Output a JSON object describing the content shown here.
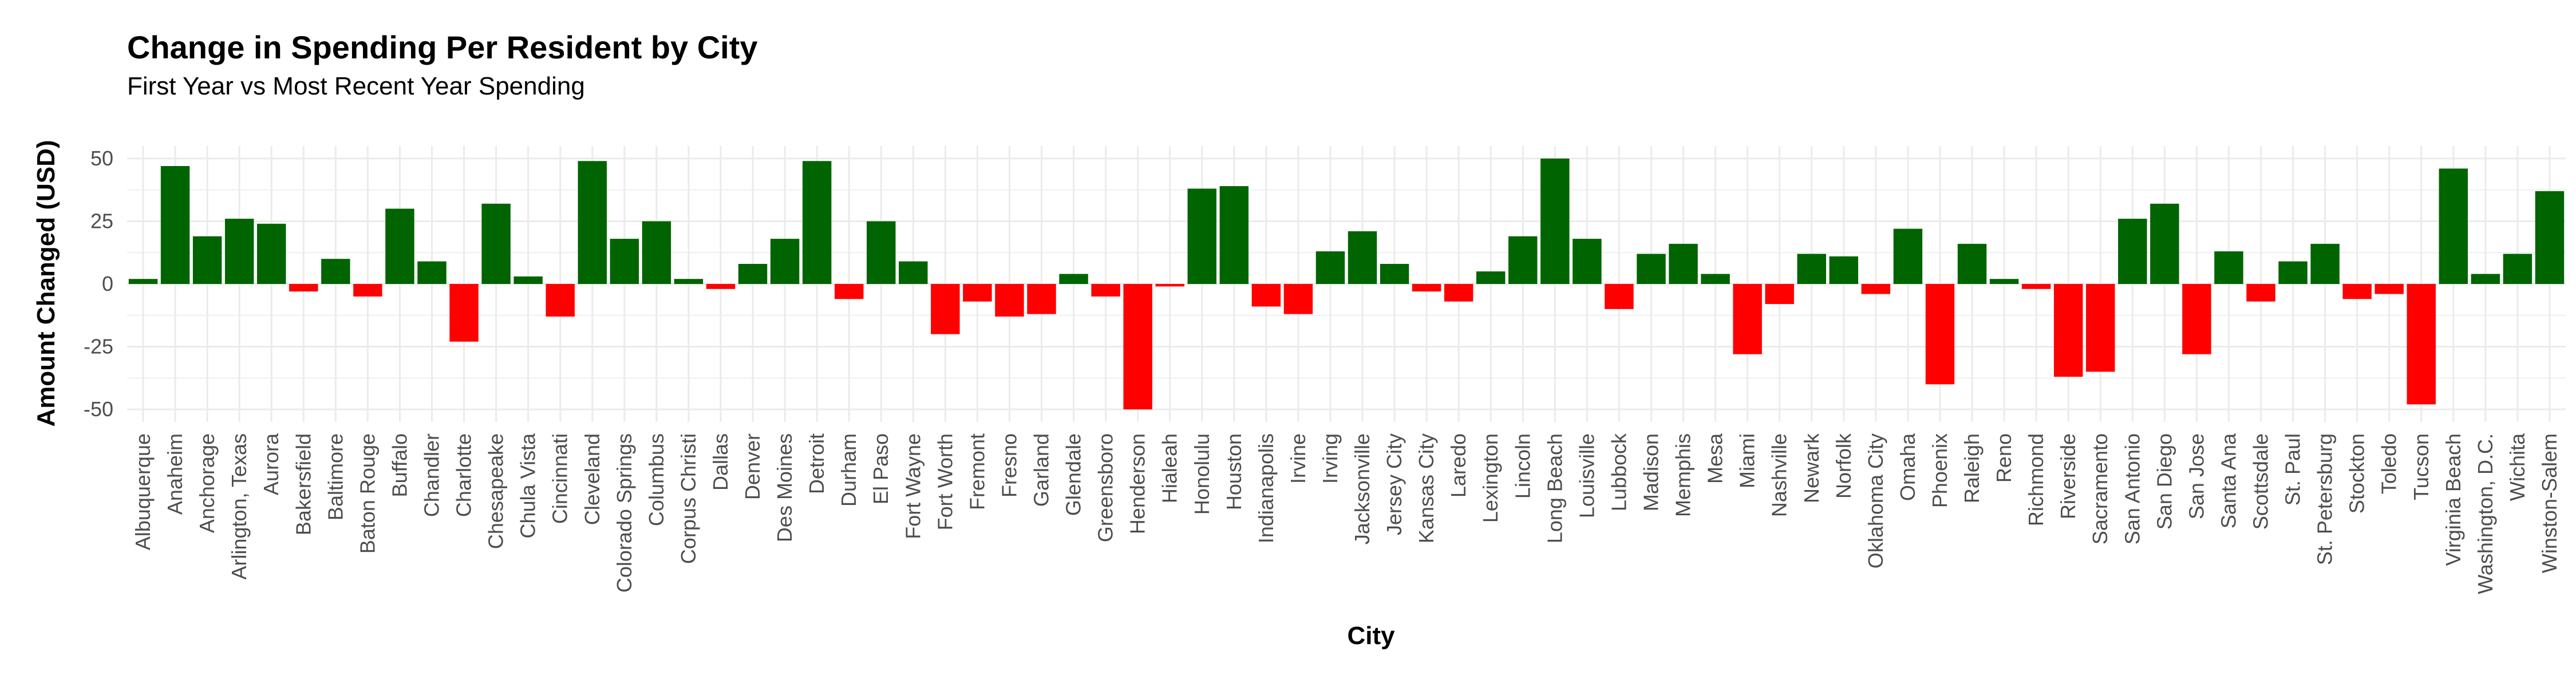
{
  "chart_data": {
    "type": "bar",
    "title": "Change in Spending Per Resident by City",
    "subtitle": "First Year vs Most Recent Year Spending",
    "xlabel": "City",
    "ylabel": "Amount Changed (USD)",
    "ylim": [
      -55,
      55
    ],
    "yticks": [
      -50,
      -25,
      0,
      25,
      50
    ],
    "grid": true,
    "colors": {
      "positive": "#006400",
      "negative": "#ff0000",
      "grid": "#ebebeb"
    },
    "categories": [
      "Albuquerque",
      "Anaheim",
      "Anchorage",
      "Arlington, Texas",
      "Aurora",
      "Bakersfield",
      "Baltimore",
      "Baton Rouge",
      "Buffalo",
      "Chandler",
      "Charlotte",
      "Chesapeake",
      "Chula Vista",
      "Cincinnati",
      "Cleveland",
      "Colorado Springs",
      "Columbus",
      "Corpus Christi",
      "Dallas",
      "Denver",
      "Des Moines",
      "Detroit",
      "Durham",
      "El Paso",
      "Fort Wayne",
      "Fort Worth",
      "Fremont",
      "Fresno",
      "Garland",
      "Glendale",
      "Greensboro",
      "Henderson",
      "Hialeah",
      "Honolulu",
      "Houston",
      "Indianapolis",
      "Irvine",
      "Irving",
      "Jacksonville",
      "Jersey City",
      "Kansas City",
      "Laredo",
      "Lexington",
      "Lincoln",
      "Long Beach",
      "Louisville",
      "Lubbock",
      "Madison",
      "Memphis",
      "Mesa",
      "Miami",
      "Nashville",
      "Newark",
      "Norfolk",
      "Oklahoma City",
      "Omaha",
      "Phoenix",
      "Raleigh",
      "Reno",
      "Richmond",
      "Riverside",
      "Sacramento",
      "San Antonio",
      "San Diego",
      "San Jose",
      "Santa Ana",
      "Scottsdale",
      "St. Paul",
      "St. Petersburg",
      "Stockton",
      "Toledo",
      "Tucson",
      "Virginia Beach",
      "Washington, D.C.",
      "Wichita",
      "Winston-Salem"
    ],
    "values": [
      2,
      47,
      19,
      26,
      24,
      -3,
      10,
      -5,
      30,
      9,
      -23,
      32,
      3,
      -13,
      49,
      18,
      25,
      2,
      -2,
      8,
      18,
      49,
      -6,
      25,
      9,
      -20,
      -7,
      -13,
      -12,
      4,
      -5,
      -50,
      -1,
      38,
      39,
      -9,
      -12,
      13,
      21,
      8,
      -3,
      -7,
      5,
      19,
      50,
      18,
      -10,
      12,
      16,
      4,
      -28,
      -8,
      12,
      11,
      -4,
      22,
      -40,
      16,
      2,
      -2,
      -37,
      -35,
      26,
      32,
      -28,
      13,
      -7,
      9,
      16,
      -6,
      -4,
      -48,
      46,
      4,
      12,
      37
    ]
  }
}
